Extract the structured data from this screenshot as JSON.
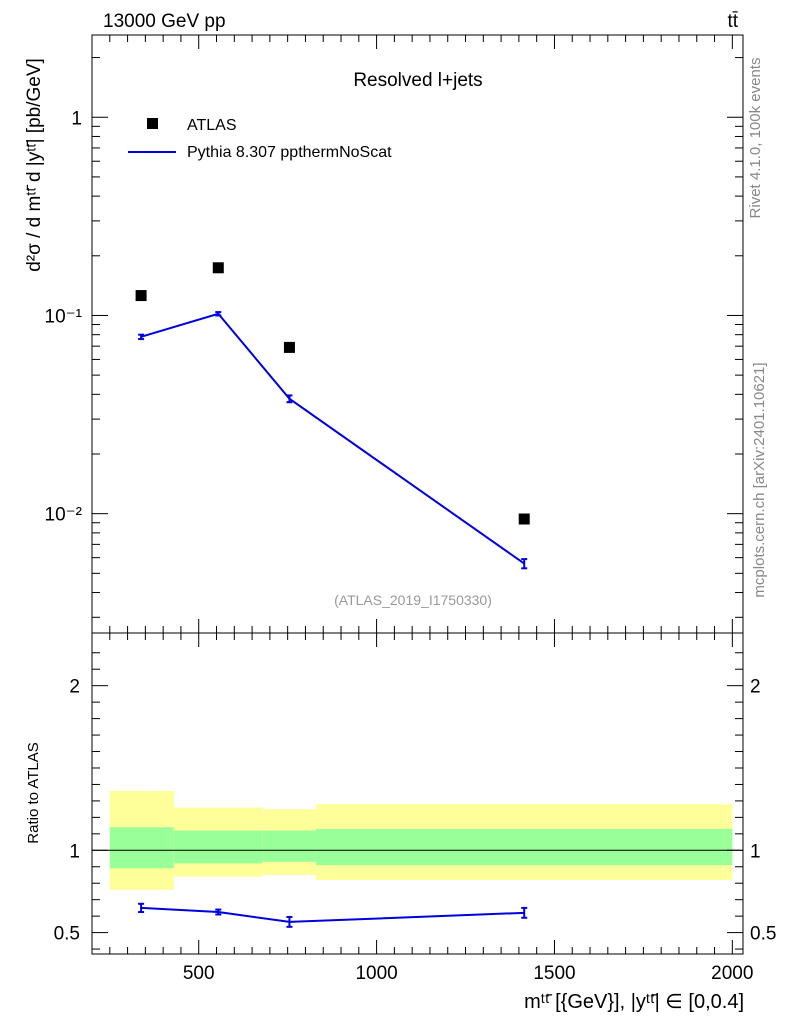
{
  "header": {
    "energy_label": "13000 GeV pp",
    "process_label": "tt̄"
  },
  "side_labels": {
    "rivet": "Rivet 4.1.0,  100k events",
    "source": "mcplots.cern.ch [arXiv:2401.10621]"
  },
  "main_panel": {
    "title": "Resolved l+jets",
    "analysis_id": "(ATLAS_2019_I1750330)",
    "ylabel": "d²σ / d mᵗᵗ̄ d |yᵗᵗ̄| [pb/GeV]",
    "y_ticks": [
      {
        "value": 1,
        "label": "1"
      },
      {
        "value": 0.1,
        "label": "10⁻¹"
      },
      {
        "value": 0.01,
        "label": "10⁻²"
      }
    ]
  },
  "ratio_panel": {
    "ylabel": "Ratio to ATLAS",
    "y_ticks": [
      {
        "value": 2,
        "label": "2"
      },
      {
        "value": 1,
        "label": "1"
      },
      {
        "value": 0.5,
        "label": "0.5"
      }
    ]
  },
  "x_axis": {
    "label": "mᵗᵗ̄ [{GeV}], |yᵗᵗ̄| ∈ [0,0.4]",
    "ticks": [
      {
        "value": 500,
        "label": "500"
      },
      {
        "value": 1000,
        "label": "1000"
      },
      {
        "value": 1500,
        "label": "1500"
      },
      {
        "value": 2000,
        "label": "2000"
      }
    ]
  },
  "legend": {
    "data_label": "ATLAS",
    "mc_label": "Pythia 8.307 ppthermNoScat"
  },
  "colors": {
    "mc_line": "#0000dd",
    "band_inner": "#99ff99",
    "band_outer": "#ffff99",
    "data_marker": "#000000"
  },
  "chart_data": [
    {
      "type": "scatter",
      "title": "Resolved l+jets",
      "xlabel": "mᵗᵗ̄ [{GeV}], |yᵗᵗ̄| ∈ [0,0.4]",
      "ylabel": "d²σ / d mᵗᵗ̄ d |yᵗᵗ̄| [pb/GeV]",
      "yscale": "log",
      "xlim": [
        200,
        2030
      ],
      "ylim": [
        0.0025,
        2.6
      ],
      "series": [
        {
          "name": "ATLAS",
          "x": [
            338,
            555,
            755,
            1415
          ],
          "y": [
            0.126,
            0.174,
            0.069,
            0.0094
          ]
        },
        {
          "name": "Pythia 8.307 ppthermNoScat",
          "x": [
            338,
            555,
            755,
            1415
          ],
          "y": [
            0.078,
            0.102,
            0.038,
            0.0056
          ],
          "yerr": [
            0.002,
            0.002,
            0.0015,
            0.0003
          ]
        }
      ]
    },
    {
      "type": "line",
      "title": "Ratio to ATLAS",
      "ylabel": "Ratio to ATLAS",
      "xlim": [
        200,
        2030
      ],
      "ylim": [
        0.37,
        2.32
      ],
      "series": [
        {
          "name": "Pythia 8.307 ppthermNoScat",
          "x": [
            338,
            555,
            755,
            1415
          ],
          "y": [
            0.65,
            0.625,
            0.565,
            0.62
          ],
          "yerr": [
            0.025,
            0.015,
            0.03,
            0.03
          ]
        }
      ],
      "bands": [
        {
          "xmin": 250,
          "xmax": 430,
          "inner": [
            0.89,
            1.14
          ],
          "outer": [
            0.76,
            1.36
          ]
        },
        {
          "xmin": 430,
          "xmax": 680,
          "inner": [
            0.92,
            1.12
          ],
          "outer": [
            0.84,
            1.26
          ]
        },
        {
          "xmin": 680,
          "xmax": 830,
          "inner": [
            0.93,
            1.12
          ],
          "outer": [
            0.85,
            1.25
          ]
        },
        {
          "xmin": 830,
          "xmax": 2000,
          "inner": [
            0.91,
            1.13
          ],
          "outer": [
            0.82,
            1.28
          ]
        }
      ]
    }
  ]
}
